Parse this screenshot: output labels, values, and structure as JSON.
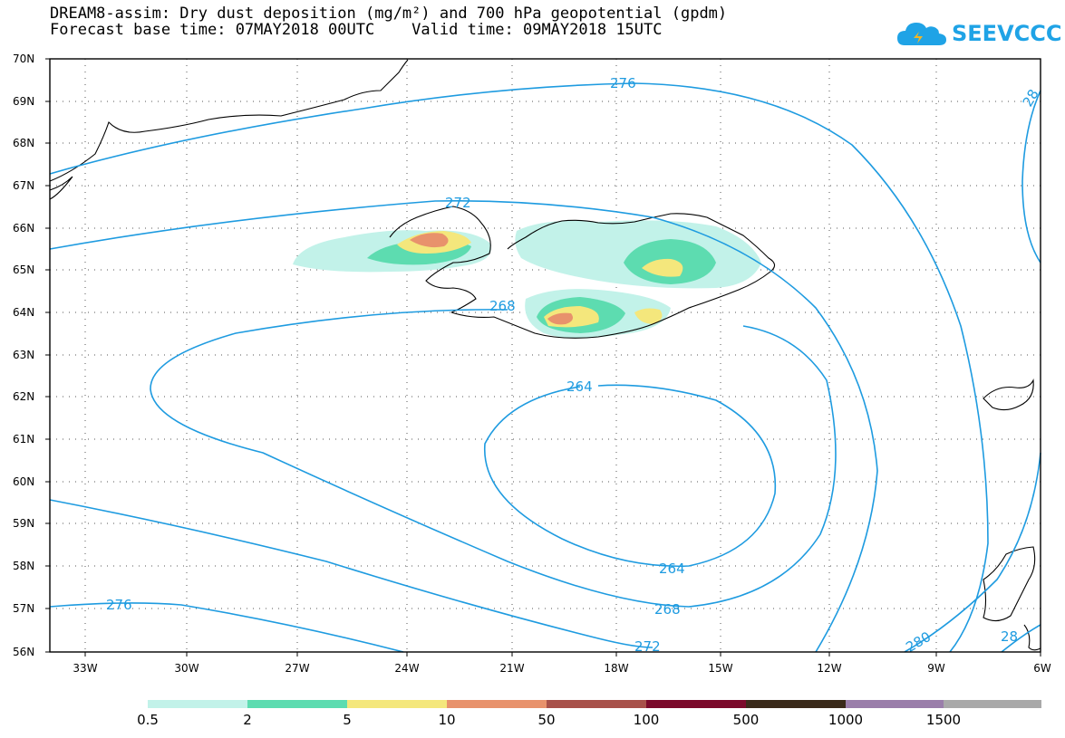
{
  "header": {
    "title_line1": "DREAM8-assim: Dry dust deposition (mg/m²) and 700 hPa geopotential (gpdm)",
    "title_line2": "Forecast base time: 07MAY2018 00UTC    Valid time: 09MAY2018 15UTC"
  },
  "logo": {
    "text": "SEEVCCC",
    "color": "#1fa3e6"
  },
  "axes": {
    "lat_labels": [
      "70N",
      "69N",
      "68N",
      "67N",
      "66N",
      "65N",
      "64N",
      "63N",
      "62N",
      "61N",
      "60N",
      "59N",
      "58N",
      "57N",
      "56N"
    ],
    "lon_labels": [
      "33W",
      "30W",
      "27W",
      "24W",
      "21W",
      "18W",
      "15W",
      "12W",
      "9W",
      "6W"
    ]
  },
  "contours": {
    "color": "#1e9be0",
    "labels": [
      "276",
      "272",
      "268",
      "264",
      "264",
      "268",
      "272",
      "276",
      "280",
      "28",
      "28"
    ]
  },
  "legend": {
    "colors": [
      "#c2f2e9",
      "#5ddcb0",
      "#f4e77c",
      "#e8926c",
      "#a8514a",
      "#7b0a2b",
      "#3a2a1a",
      "#9a7eaa",
      "#a9a9a9"
    ],
    "labels": [
      "0.5",
      "2",
      "5",
      "10",
      "50",
      "100",
      "500",
      "1000",
      "1500"
    ]
  }
}
